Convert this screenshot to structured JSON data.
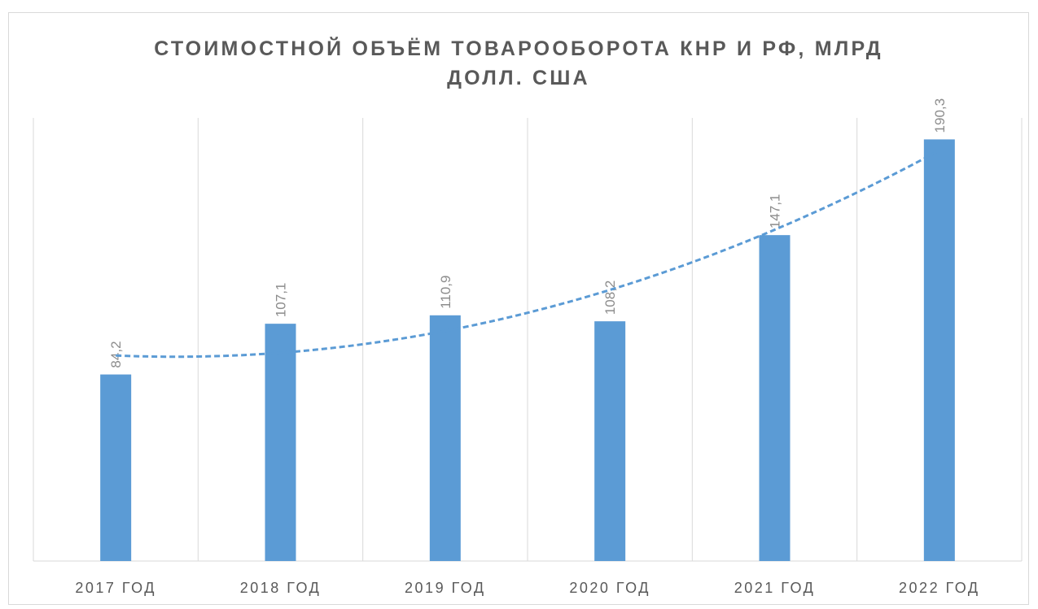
{
  "chart_data": {
    "type": "bar",
    "title": "СТОИМОСТНОЙ ОБЪЁМ ТОВАРООБОРОТА КНР И РФ, МЛРД ДОЛЛ. США",
    "categories": [
      "2017 ГОД",
      "2018 ГОД",
      "2019 ГОД",
      "2020 ГОД",
      "2021 ГОД",
      "2022 ГОД"
    ],
    "values": [
      84.2,
      107.1,
      110.9,
      108.2,
      147.1,
      190.3
    ],
    "value_labels": [
      "84,2",
      "107,1",
      "110,9",
      "108,2",
      "147,1",
      "190,3"
    ],
    "color": "#5b9bd5",
    "ylim": [
      0,
      200
    ],
    "grid": true,
    "trendline": {
      "type": "polynomial",
      "order": 2,
      "color": "#5b9bd5"
    }
  }
}
